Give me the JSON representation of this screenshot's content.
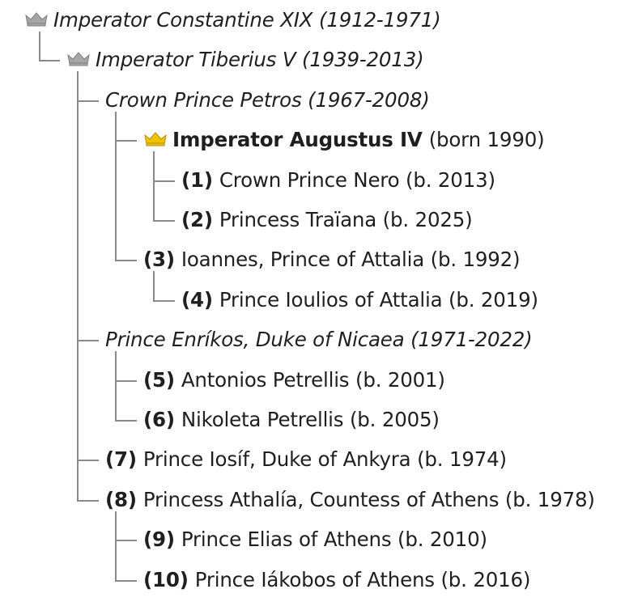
{
  "colors": {
    "connector": "#8a8a8a",
    "crown_past": "#a6a6a6",
    "crown_current": "#f2c200"
  },
  "icons": {
    "crown": "crown-icon"
  },
  "nodes": [
    {
      "depth": 0,
      "branch": "last",
      "crown": "past",
      "dead": true,
      "name": "Imperator Constantine XIX",
      "years": "(1912-1971)"
    },
    {
      "depth": 1,
      "branch": "last",
      "crown": "past",
      "dead": true,
      "name": "Imperator Tiberius V",
      "years": "(1939-2013)"
    },
    {
      "depth": 2,
      "branch": "mid",
      "dead": true,
      "name": "Crown Prince Petros",
      "years": "(1967-2008)"
    },
    {
      "depth": 3,
      "branch": "mid",
      "crown": "current",
      "bold_name": true,
      "name": "Imperator Augustus IV",
      "years": "(born 1990)"
    },
    {
      "depth": 4,
      "branch": "mid",
      "number": "(1)",
      "name": "Crown Prince Nero",
      "years": "(b. 2013)"
    },
    {
      "depth": 4,
      "branch": "last",
      "number": "(2)",
      "name": "Princess Traïana",
      "years": "(b. 2025)"
    },
    {
      "depth": 3,
      "branch": "last",
      "number": "(3)",
      "name": "Ioannes, Prince of Attalia",
      "years": "(b. 1992)"
    },
    {
      "depth": 4,
      "branch": "last",
      "number": "(4)",
      "name": "Prince Ioulios of Attalia",
      "years": "(b. 2019)"
    },
    {
      "depth": 2,
      "branch": "mid",
      "dead": true,
      "name": "Prince Enríkos, Duke of Nicaea",
      "years": "(1971-2022)"
    },
    {
      "depth": 3,
      "branch": "mid",
      "number": "(5)",
      "name": "Antonios Petrellis",
      "years": "(b. 2001)"
    },
    {
      "depth": 3,
      "branch": "last",
      "number": "(6)",
      "name": "Nikoleta Petrellis",
      "years": "(b. 2005)"
    },
    {
      "depth": 2,
      "branch": "mid",
      "number": "(7)",
      "name": "Prince Iosíf, Duke of Ankyra",
      "years": "(b. 1974)"
    },
    {
      "depth": 2,
      "branch": "last",
      "number": "(8)",
      "name": "Princess Athalía, Countess of Athens",
      "years": "(b. 1978)"
    },
    {
      "depth": 3,
      "branch": "mid",
      "number": "(9)",
      "name": "Prince Elias of Athens",
      "years": "(b. 2010)"
    },
    {
      "depth": 3,
      "branch": "last",
      "number": "(10)",
      "name": "Prince Iákobos of Athens",
      "years": "(b. 2016)"
    }
  ]
}
